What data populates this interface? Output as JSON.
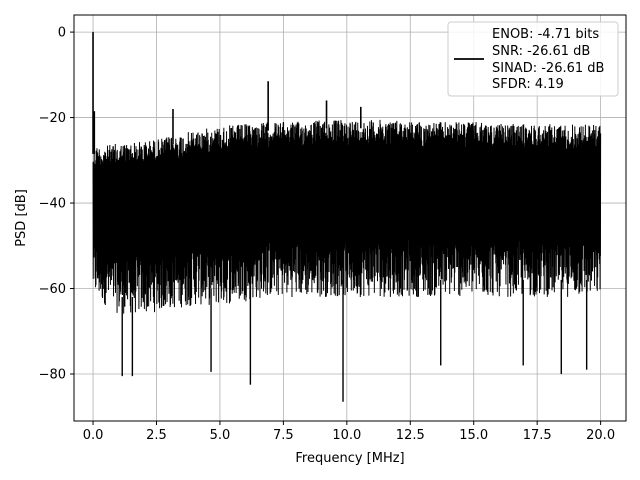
{
  "chart_data": {
    "type": "line",
    "xlabel": "Frequency [MHz]",
    "ylabel": "PSD [dB]",
    "xlim": [
      -0.75,
      21.0
    ],
    "ylim": [
      -91,
      4
    ],
    "xticks": [
      0.0,
      2.5,
      5.0,
      7.5,
      10.0,
      12.5,
      15.0,
      17.5,
      20.0
    ],
    "xtick_labels": [
      "0.0",
      "2.5",
      "5.0",
      "7.5",
      "10.0",
      "12.5",
      "15.0",
      "17.5",
      "20.0"
    ],
    "yticks": [
      0,
      -20,
      -40,
      -60,
      -80
    ],
    "ytick_labels": [
      "0",
      "−20",
      "−40",
      "−60",
      "−80"
    ],
    "grid": true,
    "legend_position": "top-right",
    "series": [
      {
        "name": "ENOB: -4.71 bits\nSNR: -26.61 dB\nSINAD: -26.61 dB\nSFDR: 4.19",
        "legend_lines": [
          "ENOB: -4.71 bits",
          "SNR: -26.61 dB",
          "SINAD: -26.61 dB",
          "SFDR: 4.19"
        ],
        "color": "#000000",
        "x_range": [
          0.0,
          20.0
        ],
        "envelope": {
          "x": [
            0.0,
            0.5,
            1.0,
            2.0,
            3.0,
            4.0,
            5.0,
            6.0,
            7.0,
            8.0,
            9.0,
            10.0,
            11.0,
            12.0,
            13.0,
            14.0,
            15.0,
            16.0,
            17.0,
            18.0,
            19.0,
            20.0
          ],
          "upper": [
            -26.5,
            -26.5,
            -26.0,
            -25.5,
            -24.5,
            -23.0,
            -22.0,
            -21.5,
            -21.0,
            -21.0,
            -20.5,
            -20.5,
            -20.5,
            -20.5,
            -21.0,
            -21.0,
            -21.0,
            -21.5,
            -21.5,
            -21.5,
            -21.5,
            -21.5
          ],
          "lower": [
            -62,
            -64,
            -66,
            -66,
            -65,
            -64,
            -64,
            -63,
            -62,
            -62,
            -62,
            -62,
            -62,
            -62,
            -62,
            -62,
            -62,
            -62,
            -62,
            -62,
            -62,
            -62
          ]
        },
        "peaks": [
          {
            "x": 0.0,
            "y": 0.0
          },
          {
            "x": 0.05,
            "y": -18.5
          },
          {
            "x": 3.15,
            "y": -18.0
          },
          {
            "x": 6.9,
            "y": -11.5
          },
          {
            "x": 9.2,
            "y": -16.0
          },
          {
            "x": 10.55,
            "y": -17.5
          }
        ],
        "dips": [
          {
            "x": 1.15,
            "y": -80.5
          },
          {
            "x": 1.55,
            "y": -80.5
          },
          {
            "x": 4.65,
            "y": -79.5
          },
          {
            "x": 6.2,
            "y": -82.5
          },
          {
            "x": 9.85,
            "y": -86.5
          },
          {
            "x": 13.7,
            "y": -78.0
          },
          {
            "x": 16.95,
            "y": -78.0
          },
          {
            "x": 18.45,
            "y": -80.0
          },
          {
            "x": 19.45,
            "y": -79.0
          }
        ]
      }
    ]
  }
}
